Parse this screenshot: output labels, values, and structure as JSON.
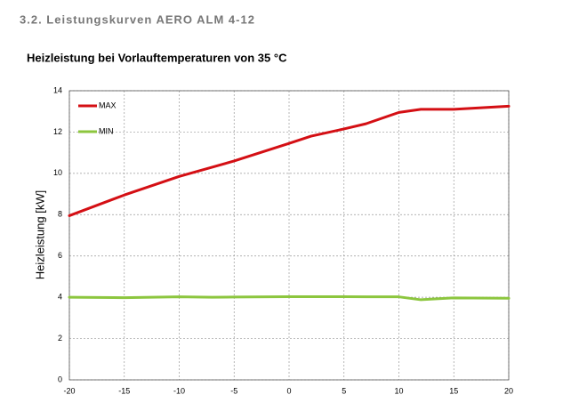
{
  "heading": "3.2. Leistungskurven AERO ALM 4-12",
  "chart_data": {
    "type": "line",
    "title": "Heizleistung bei Vorlauftemperaturen von 35 °C",
    "y_label": "Heizleistung [kW]",
    "x": [
      -20,
      -15,
      -10,
      -7,
      -5,
      0,
      2,
      5,
      7,
      10,
      12,
      15,
      20
    ],
    "series": [
      {
        "name": "MAX",
        "color": "#d40f14",
        "values": [
          7.95,
          8.95,
          9.85,
          10.3,
          10.6,
          11.45,
          11.8,
          12.15,
          12.4,
          12.95,
          13.1,
          13.1,
          13.25
        ]
      },
      {
        "name": "MIN",
        "color": "#8cc63e",
        "values": [
          4.0,
          3.98,
          4.02,
          4.0,
          4.01,
          4.03,
          4.03,
          4.03,
          4.02,
          4.02,
          3.88,
          3.97,
          3.95
        ]
      }
    ],
    "xlim": [
      -20,
      20
    ],
    "xticks": [
      -20,
      -15,
      -10,
      -5,
      0,
      5,
      10,
      15,
      20
    ],
    "ylim": [
      0,
      14
    ],
    "yticks": [
      0,
      2,
      4,
      6,
      8,
      10,
      12,
      14
    ],
    "grid": true,
    "legend": "upper left"
  }
}
